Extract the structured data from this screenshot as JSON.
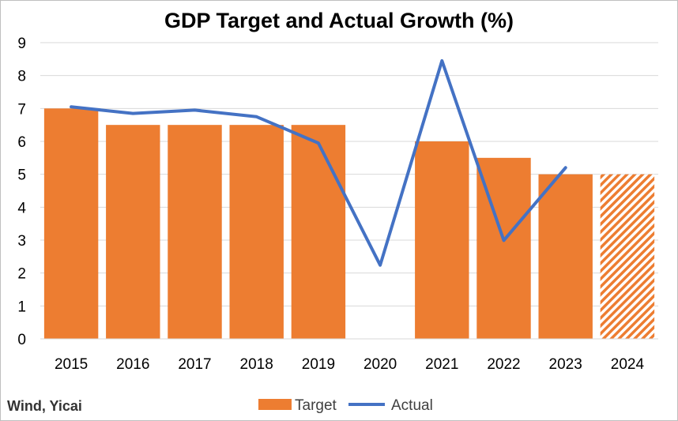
{
  "chart_data": {
    "type": "bar",
    "title": "GDP Target and Actual Growth (%)",
    "categories": [
      "2015",
      "2016",
      "2017",
      "2018",
      "2019",
      "2020",
      "2021",
      "2022",
      "2023",
      "2024"
    ],
    "series": [
      {
        "name": "Target",
        "type": "bar",
        "color": "#ED7D31",
        "values": [
          7.0,
          6.5,
          6.5,
          6.5,
          6.5,
          null,
          6.0,
          5.5,
          5.0,
          5.0
        ],
        "hatched": [
          false,
          false,
          false,
          false,
          false,
          false,
          false,
          false,
          false,
          true
        ]
      },
      {
        "name": "Actual",
        "type": "line",
        "color": "#4472C4",
        "values": [
          7.05,
          6.85,
          6.95,
          6.75,
          5.95,
          2.24,
          8.45,
          2.99,
          5.2,
          null
        ]
      }
    ],
    "ylim": [
      0,
      9
    ],
    "yticks": [
      "0",
      "1",
      "2",
      "3",
      "4",
      "5",
      "6",
      "7",
      "8",
      "9"
    ],
    "grid": true,
    "legend_position": "bottom"
  },
  "source_note": "Wind, Yicai"
}
